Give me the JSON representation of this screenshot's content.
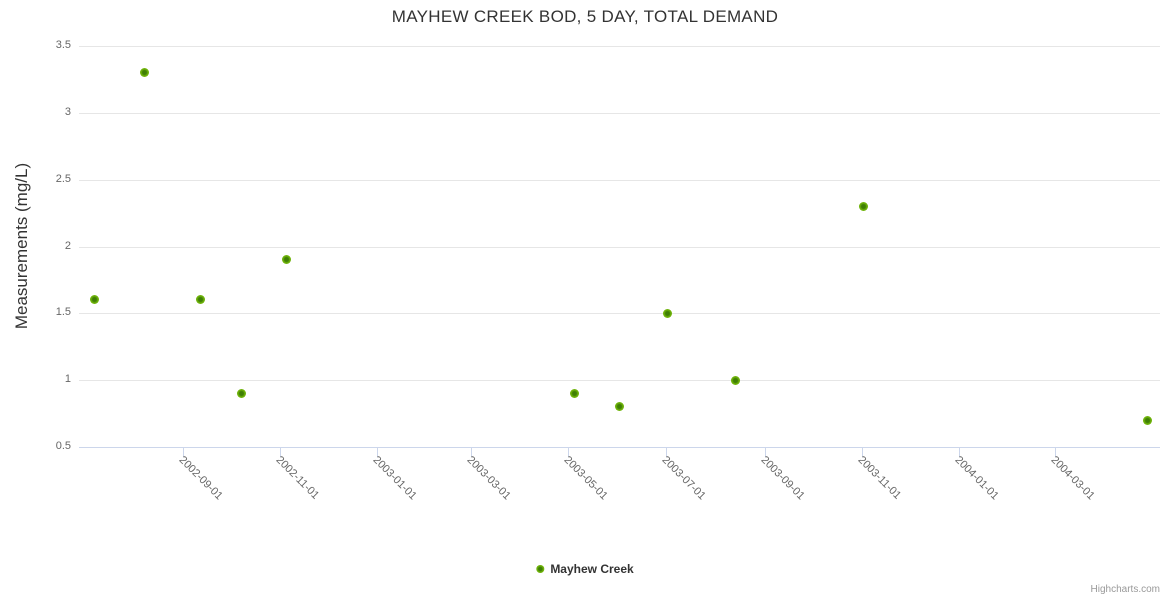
{
  "chart_data": {
    "type": "scatter",
    "title": "MAYHEW CREEK BOD, 5 DAY, TOTAL DEMAND",
    "xlabel": "",
    "ylabel": "Measurements (mg/L)",
    "ylim": [
      0.5,
      3.5
    ],
    "yticks": [
      0.5,
      1,
      1.5,
      2,
      2.5,
      3,
      3.5
    ],
    "xlim": [
      "2002-06-28",
      "2004-05-06"
    ],
    "xticks": [
      "2002-09-01",
      "2002-11-01",
      "2003-01-01",
      "2003-03-01",
      "2003-05-01",
      "2003-07-01",
      "2003-09-01",
      "2003-11-01",
      "2004-01-01",
      "2004-03-01"
    ],
    "grid": "horizontal",
    "legend_position": "bottom-center",
    "series": [
      {
        "name": "Mayhew Creek",
        "color": "#6fb30a",
        "points": [
          {
            "date": "2002-07-08",
            "value": 1.6
          },
          {
            "date": "2002-08-08",
            "value": 3.3
          },
          {
            "date": "2002-09-12",
            "value": 1.6
          },
          {
            "date": "2002-10-08",
            "value": 0.9
          },
          {
            "date": "2002-11-05",
            "value": 1.9
          },
          {
            "date": "2003-05-05",
            "value": 0.9
          },
          {
            "date": "2003-06-02",
            "value": 0.8
          },
          {
            "date": "2003-07-02",
            "value": 1.5
          },
          {
            "date": "2003-08-14",
            "value": 1.0
          },
          {
            "date": "2003-11-02",
            "value": 2.3
          },
          {
            "date": "2004-04-28",
            "value": 0.7
          }
        ]
      }
    ]
  },
  "legend": {
    "label": "Mayhew Creek"
  },
  "credits": {
    "label": "Highcharts.com"
  },
  "colors": {
    "background": "#ffffff",
    "title_text": "#333333",
    "axis_label_text": "#666666",
    "axis_title_text": "#333333",
    "gridline": "#e6e6e6",
    "axis_line": "#ccd6eb",
    "marker_fill": "#6fb30a",
    "marker_core": "#3f7f04",
    "legend_text": "#333333",
    "credits_text": "#999999"
  }
}
